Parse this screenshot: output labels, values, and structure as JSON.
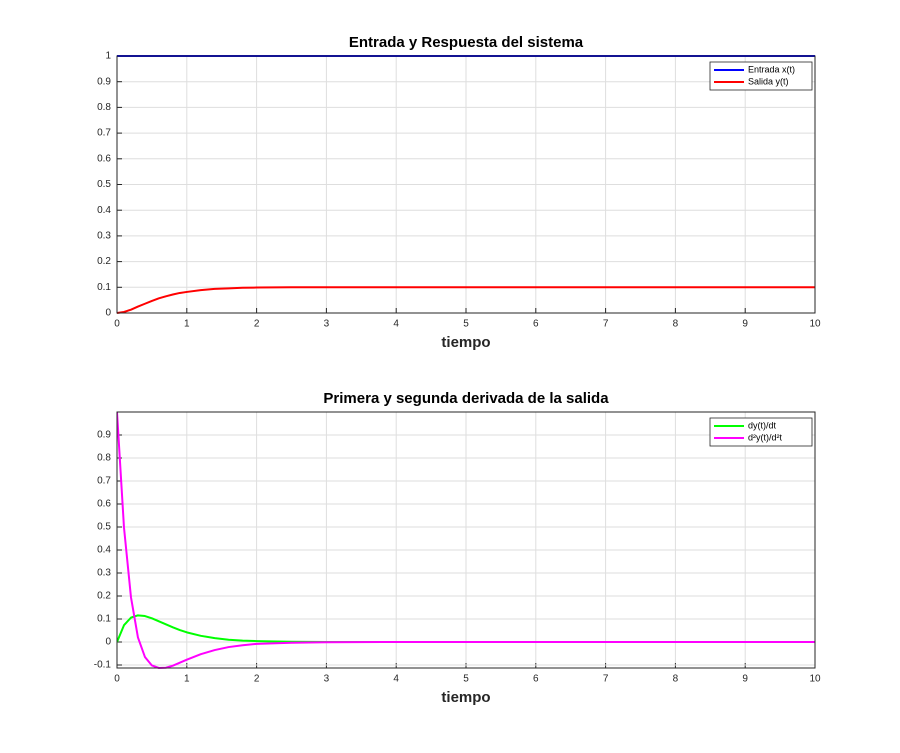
{
  "chart_data": [
    {
      "type": "line",
      "title": "Entrada y Respuesta del sistema",
      "xlabel": "tiempo",
      "x": [
        0,
        0.1,
        0.2,
        0.3,
        0.4,
        0.5,
        0.6,
        0.7,
        0.8,
        0.9,
        1.0,
        1.2,
        1.4,
        1.6,
        1.8,
        2.0,
        2.5,
        3,
        4,
        5,
        6,
        7,
        8,
        9,
        10
      ],
      "series": [
        {
          "name": "Entrada x(t)",
          "color": "#0000ff",
          "values": [
            1,
            1,
            1,
            1,
            1,
            1,
            1,
            1,
            1,
            1,
            1,
            1,
            1,
            1,
            1,
            1,
            1,
            1,
            1,
            1,
            1,
            1,
            1,
            1,
            1
          ]
        },
        {
          "name": "Salida y(t)",
          "color": "#ff0000",
          "values": [
            0,
            0.004,
            0.013,
            0.025,
            0.036,
            0.047,
            0.057,
            0.065,
            0.072,
            0.078,
            0.082,
            0.089,
            0.094,
            0.096,
            0.098,
            0.099,
            0.1,
            0.1,
            0.1,
            0.1,
            0.1,
            0.1,
            0.1,
            0.1,
            0.1
          ]
        }
      ],
      "xlim": [
        0,
        10
      ],
      "xticks": [
        0,
        1,
        2,
        3,
        4,
        5,
        6,
        7,
        8,
        9,
        10
      ],
      "ylim": [
        0,
        1
      ],
      "yticks": [
        0,
        0.1,
        0.2,
        0.3,
        0.4,
        0.5,
        0.6,
        0.7,
        0.8,
        0.9,
        1
      ],
      "grid": true,
      "legend": "northeast"
    },
    {
      "type": "line",
      "title": "Primera y segunda derivada de la salida",
      "xlabel": "tiempo",
      "x": [
        0,
        0.1,
        0.2,
        0.3,
        0.4,
        0.5,
        0.6,
        0.7,
        0.8,
        0.9,
        1.0,
        1.2,
        1.4,
        1.6,
        1.8,
        2.0,
        2.5,
        3,
        4,
        5,
        6,
        7,
        8,
        9,
        10
      ],
      "series": [
        {
          "name": "dy(t)/dt",
          "color": "#00ff00",
          "values": [
            0,
            0.073,
            0.106,
            0.116,
            0.113,
            0.103,
            0.09,
            0.077,
            0.064,
            0.052,
            0.042,
            0.027,
            0.017,
            0.01,
            0.006,
            0.004,
            0.001,
            0,
            0,
            0,
            0,
            0,
            0,
            0,
            0
          ]
        },
        {
          "name": "d²y(t)/d²t",
          "color": "#ff00ff",
          "values": [
            1,
            0.498,
            0.195,
            0.02,
            -0.065,
            -0.102,
            -0.113,
            -0.112,
            -0.103,
            -0.09,
            -0.077,
            -0.053,
            -0.035,
            -0.022,
            -0.014,
            -0.008,
            -0.003,
            -0.001,
            0,
            0,
            0,
            0,
            0,
            0,
            0
          ]
        }
      ],
      "xlim": [
        0,
        10
      ],
      "xticks": [
        0,
        1,
        2,
        3,
        4,
        5,
        6,
        7,
        8,
        9,
        10
      ],
      "ylim": [
        -0.113,
        1
      ],
      "yticks": [
        -0.1,
        0,
        0.1,
        0.2,
        0.3,
        0.4,
        0.5,
        0.6,
        0.7,
        0.8,
        0.9
      ],
      "grid": true,
      "legend": "northeast"
    }
  ]
}
